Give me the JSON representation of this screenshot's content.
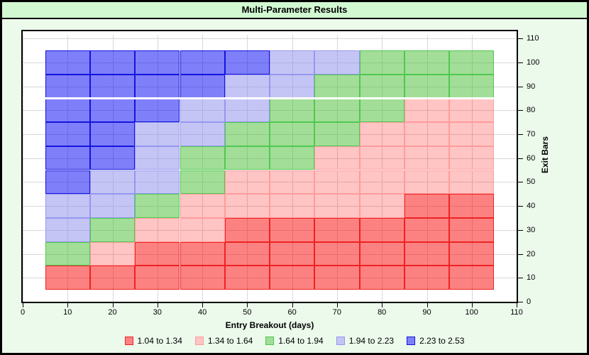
{
  "title": "Multi-Parameter Results",
  "chart_data": {
    "type": "heatmap",
    "title": "Multi-Parameter Results",
    "xlabel": "Entry Breakout (days)",
    "ylabel": "Exit Bars",
    "xlim": [
      0,
      110
    ],
    "ylim": [
      0,
      110
    ],
    "x_ticks": [
      0,
      10,
      20,
      30,
      40,
      50,
      60,
      70,
      80,
      90,
      100,
      110
    ],
    "y_ticks": [
      0,
      10,
      20,
      30,
      40,
      50,
      60,
      70,
      80,
      90,
      100,
      110
    ],
    "grid": "on",
    "legend_position": "bottom",
    "x": [
      10,
      20,
      30,
      40,
      50,
      60,
      70,
      80,
      90,
      100
    ],
    "cell_size": [
      10,
      10
    ],
    "buckets": {
      "r": {
        "label": "1.04 to 1.34",
        "fill_rgba": "rgba(250,5,5,0.5)",
        "swatch_hex": "#fc8282",
        "border_hex": "#ee2222"
      },
      "p": {
        "label": "1.34 to 1.64",
        "fill_rgba": "rgba(255,10,10,0.24)",
        "swatch_hex": "#ffc4c4",
        "border_hex": "#ff9c9c"
      },
      "g": {
        "label": "1.64 to 1.94",
        "fill_rgba": "rgba(70,190,50,0.5)",
        "swatch_hex": "#a2de98",
        "border_hex": "#50c850"
      },
      "l": {
        "label": "1.94 to 2.23",
        "fill_rgba": "rgba(140,140,235,0.5)",
        "swatch_hex": "#c5c5f5",
        "border_hex": "#9696f0"
      },
      "b": {
        "label": "2.23 to 2.53",
        "fill_rgba": "rgba(0,0,245,0.5)",
        "swatch_hex": "#7f7ffa",
        "border_hex": "#1414dc"
      }
    },
    "rows_top_to_bottom": [
      {
        "exit": 100,
        "cells": [
          "b",
          "b",
          "b",
          "b",
          "b",
          "l",
          "l",
          "g",
          "g",
          "g"
        ]
      },
      {
        "exit": 90,
        "cells": [
          "b",
          "b",
          "b",
          "b",
          "l",
          "l",
          "g",
          "g",
          "g",
          "g"
        ]
      },
      {
        "exit": 80,
        "cells": [
          "b",
          "b",
          "b",
          "l",
          "l",
          "g",
          "g",
          "g",
          "p",
          "p"
        ]
      },
      {
        "exit": 70,
        "cells": [
          "b",
          "b",
          "l",
          "l",
          "g",
          "g",
          "g",
          "p",
          "p",
          "p"
        ]
      },
      {
        "exit": 60,
        "cells": [
          "b",
          "b",
          "l",
          "g",
          "g",
          "g",
          "p",
          "p",
          "p",
          "p"
        ]
      },
      {
        "exit": 50,
        "cells": [
          "b",
          "l",
          "l",
          "g",
          "p",
          "p",
          "p",
          "p",
          "p",
          "p"
        ]
      },
      {
        "exit": 40,
        "cells": [
          "l",
          "l",
          "g",
          "p",
          "p",
          "p",
          "p",
          "p",
          "r",
          "r"
        ]
      },
      {
        "exit": 30,
        "cells": [
          "l",
          "g",
          "p",
          "p",
          "r",
          "r",
          "r",
          "r",
          "r",
          "r"
        ]
      },
      {
        "exit": 20,
        "cells": [
          "g",
          "p",
          "r",
          "r",
          "r",
          "r",
          "r",
          "r",
          "r",
          "r"
        ]
      },
      {
        "exit": 10,
        "cells": [
          "r",
          "r",
          "r",
          "r",
          "r",
          "r",
          "r",
          "r",
          "r",
          "r"
        ]
      }
    ]
  },
  "legend": {
    "items": [
      {
        "bucket": "r",
        "label": "1.04 to 1.34"
      },
      {
        "bucket": "p",
        "label": "1.34 to 1.64"
      },
      {
        "bucket": "g",
        "label": "1.64 to 1.94"
      },
      {
        "bucket": "l",
        "label": "1.94 to 2.23"
      },
      {
        "bucket": "b",
        "label": "2.23 to 2.53"
      }
    ]
  }
}
